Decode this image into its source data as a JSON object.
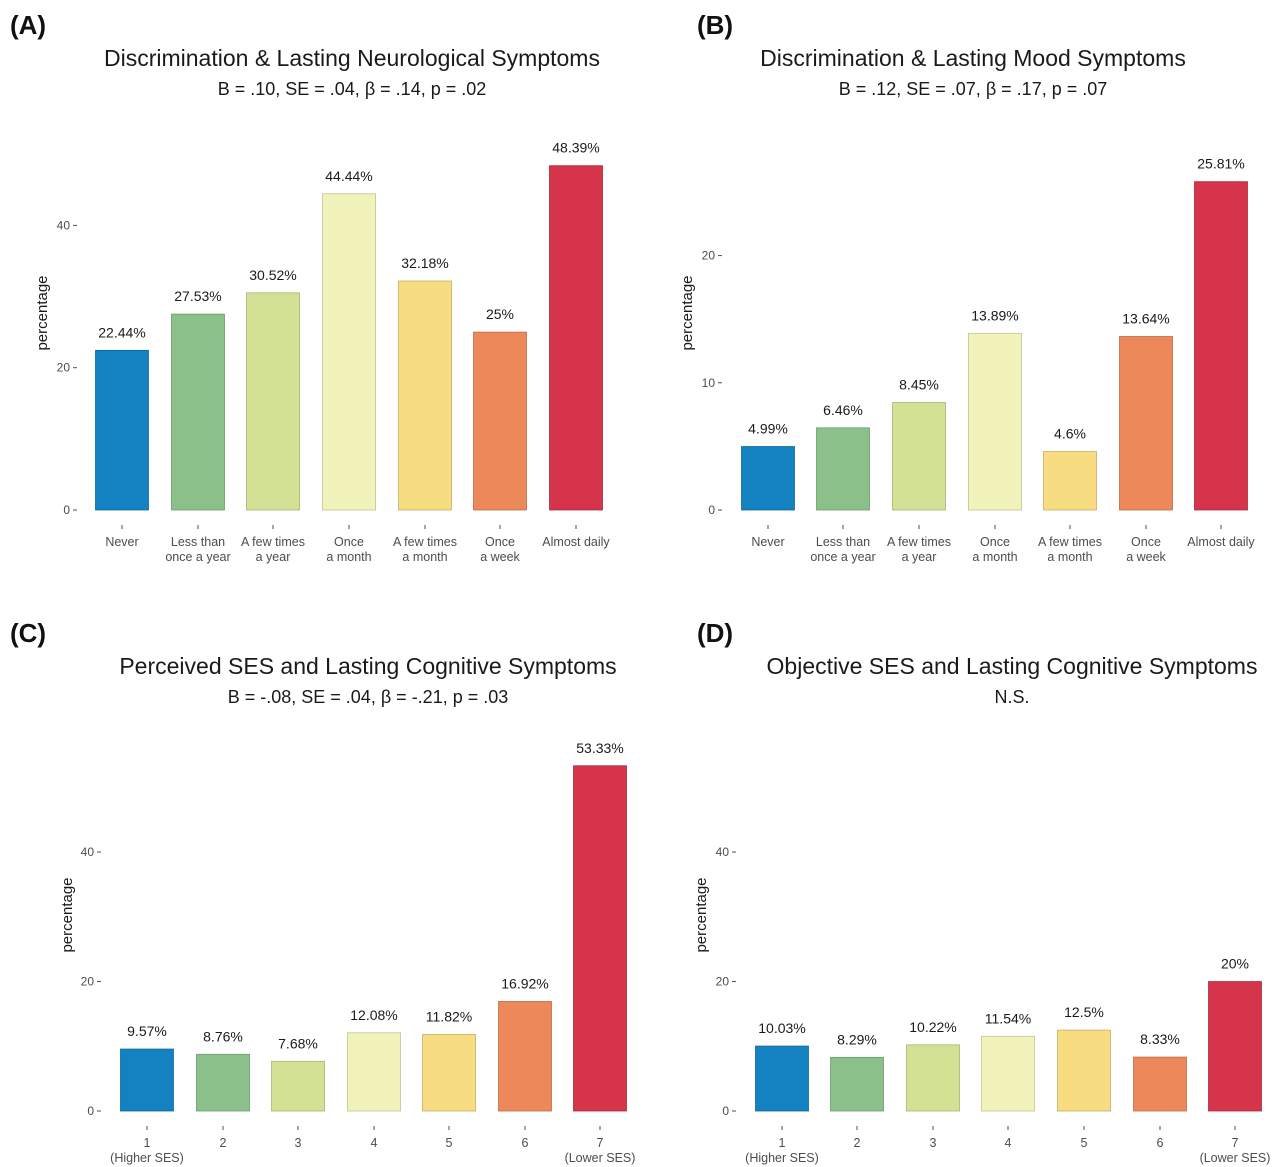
{
  "chart_data": [
    {
      "panel": "(A)",
      "type": "bar",
      "title": "Discrimination & Lasting Neurological Symptoms",
      "subtitle": "B = .10, SE = .04, β = .14, p = .02",
      "xlabel": "",
      "ylabel": "percentage",
      "ylim": [
        0,
        52
      ],
      "yticks": [
        0,
        20,
        40
      ],
      "categories": [
        "Never",
        "Less than\nonce a year",
        "A few times\na year",
        "Once\na month",
        "A few times\na month",
        "Once\na week",
        "Almost daily"
      ],
      "values": [
        22.44,
        27.53,
        30.52,
        44.44,
        32.18,
        25,
        48.39
      ],
      "labels": [
        "22.44%",
        "27.53%",
        "30.52%",
        "44.44%",
        "32.18%",
        "25%",
        "48.39%"
      ],
      "colors": [
        "#1482c0",
        "#8bc08b",
        "#d2e193",
        "#f2f2bb",
        "#f8dc82",
        "#ec8859",
        "#d6344b"
      ],
      "grid": false
    },
    {
      "panel": "(B)",
      "type": "bar",
      "title": "Discrimination & Lasting Mood Symptoms",
      "subtitle": "B = .12, SE = .07, β = .17, p = .07",
      "xlabel": "",
      "ylabel": "percentage",
      "ylim": [
        0,
        28.3
      ],
      "yticks": [
        0,
        10,
        20
      ],
      "categories": [
        "Never",
        "Less than\nonce a year",
        "A few times\na year",
        "Once\na month",
        "A few times\na month",
        "Once\na week",
        "Almost daily"
      ],
      "values": [
        4.99,
        6.46,
        8.45,
        13.89,
        4.6,
        13.64,
        25.81
      ],
      "labels": [
        "4.99%",
        "6.46%",
        "8.45%",
        "13.89%",
        "4.6%",
        "13.64%",
        "25.81%"
      ],
      "colors": [
        "#1482c0",
        "#8bc08b",
        "#d2e193",
        "#f2f2bb",
        "#f8dc82",
        "#ec8859",
        "#d6344b"
      ],
      "grid": false
    },
    {
      "panel": "(C)",
      "type": "bar",
      "title": "Perceived SES and Lasting Cognitive Symptoms",
      "subtitle": "B = -.08, SE = .04, β = -.21, p = .03",
      "xlabel": "",
      "ylabel": "percentage",
      "ylim": [
        0,
        57
      ],
      "yticks": [
        0,
        20,
        40
      ],
      "categories": [
        "1\n(Higher SES)",
        "2",
        "3",
        "4",
        "5",
        "6",
        "7\n(Lower SES)"
      ],
      "values": [
        9.57,
        8.76,
        7.68,
        12.08,
        11.82,
        16.92,
        53.33
      ],
      "labels": [
        "9.57%",
        "8.76%",
        "7.68%",
        "12.08%",
        "11.82%",
        "16.92%",
        "53.33%"
      ],
      "colors": [
        "#1482c0",
        "#8bc08b",
        "#d2e193",
        "#f2f2bb",
        "#f8dc82",
        "#ec8859",
        "#d6344b"
      ],
      "grid": false
    },
    {
      "panel": "(D)",
      "type": "bar",
      "title": "Objective SES and Lasting Cognitive Symptoms",
      "subtitle": "N.S.",
      "xlabel": "",
      "ylabel": "percentage",
      "ylim": [
        0,
        57
      ],
      "yticks": [
        0,
        20,
        40
      ],
      "categories": [
        "1\n(Higher SES)",
        "2",
        "3",
        "4",
        "5",
        "6",
        "7\n(Lower SES)"
      ],
      "values": [
        10.03,
        8.29,
        10.22,
        11.54,
        12.5,
        8.33,
        20
      ],
      "labels": [
        "10.03%",
        "8.29%",
        "10.22%",
        "11.54%",
        "12.5%",
        "8.33%",
        "20%"
      ],
      "colors": [
        "#1482c0",
        "#8bc08b",
        "#d2e193",
        "#f2f2bb",
        "#f8dc82",
        "#ec8859",
        "#d6344b"
      ],
      "grid": false
    }
  ]
}
